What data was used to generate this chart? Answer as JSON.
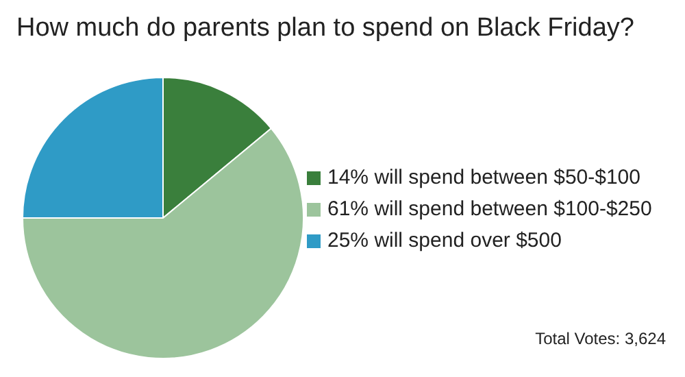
{
  "chart_data": {
    "type": "pie",
    "title": "How much do parents plan to spend on Black Friday?",
    "categories": [
      "14% will spend between $50-$100",
      "61% will spend between $100-$250",
      "25% will spend over $500"
    ],
    "values": [
      14,
      61,
      25
    ],
    "colors": [
      "#3a7f3c",
      "#9cc49c",
      "#2f9bc6"
    ],
    "legend": "right",
    "annotations": [
      "Total Votes: 3,624"
    ]
  }
}
